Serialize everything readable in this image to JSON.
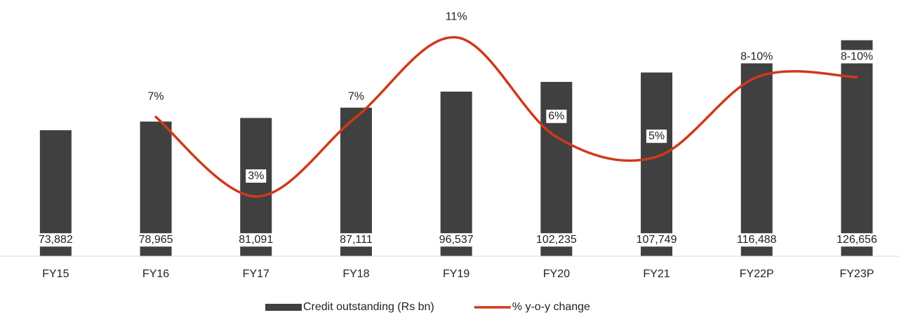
{
  "chart_data": {
    "type": "bar",
    "categories": [
      "FY15",
      "FY16",
      "FY17",
      "FY18",
      "FY19",
      "FY20",
      "FY21",
      "FY22P",
      "FY23P"
    ],
    "ylim": [
      0,
      140000
    ],
    "y2lim": [
      0,
      12
    ],
    "legend": "bottom",
    "series": [
      {
        "name": "Credit outstanding (Rs bn)",
        "type": "bar",
        "color": "#404040",
        "values": [
          73882,
          78965,
          81091,
          87111,
          96537,
          102235,
          107749,
          116488,
          126656
        ],
        "value_labels": [
          "73,882",
          "78,965",
          "81,091",
          "87,111",
          "96,537",
          "102,235",
          "107,749",
          "116,488",
          "126,656"
        ]
      },
      {
        "name": "% y-o-y change",
        "type": "line",
        "axis": "y2",
        "color": "#d0391a",
        "values": [
          null,
          7,
          3,
          7,
          11,
          6,
          5,
          9,
          9
        ],
        "value_labels": [
          null,
          "7%",
          "3%",
          "7%",
          "11%",
          "6%",
          "5%",
          "8-10%",
          "8-10%"
        ]
      }
    ]
  }
}
